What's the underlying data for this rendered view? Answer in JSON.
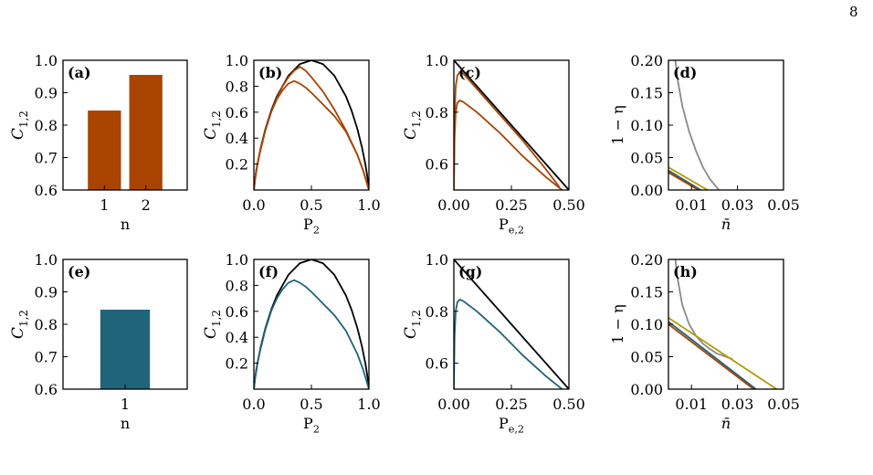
{
  "page": {
    "number": "8"
  },
  "colors": {
    "orange": "#A84300",
    "teal": "#1F6478",
    "olive": "#B49B00",
    "gray": "#8A8A8A",
    "black": "#000000"
  },
  "chart_data": [
    {
      "id": "a",
      "panel_label": "(a)",
      "type": "bar",
      "categories": [
        "1",
        "2"
      ],
      "values": [
        0.845,
        0.955
      ],
      "xlabel": "n",
      "ylabel": "C1,2",
      "ylim": [
        0.6,
        1.0
      ],
      "xticks": [
        "1",
        "2"
      ],
      "yticks": [
        "0.6",
        "0.7",
        "0.8",
        "0.9",
        "1.0"
      ],
      "color": "orange"
    },
    {
      "id": "b",
      "panel_label": "(b)",
      "type": "line",
      "xlabel": "P2",
      "ylabel": "C1,2",
      "xlim": [
        0,
        1
      ],
      "ylim": [
        0,
        1
      ],
      "xticks": [
        "0.0",
        "0.5",
        "1.0"
      ],
      "yticks": [
        "0.2",
        "0.4",
        "0.6",
        "0.8",
        "1.0"
      ],
      "series": [
        {
          "color": "black",
          "x": [
            0,
            0.01,
            0.03,
            0.06,
            0.1,
            0.15,
            0.2,
            0.3,
            0.4,
            0.5,
            0.6,
            0.7,
            0.8,
            0.85,
            0.9,
            0.94,
            0.97,
            0.99,
            1.0
          ],
          "y": [
            0,
            0.081,
            0.194,
            0.327,
            0.469,
            0.61,
            0.722,
            0.881,
            0.971,
            1.0,
            0.971,
            0.881,
            0.722,
            0.61,
            0.469,
            0.327,
            0.194,
            0.081,
            0
          ]
        },
        {
          "color": "orange",
          "x": [
            0,
            0.02,
            0.05,
            0.1,
            0.15,
            0.2,
            0.25,
            0.3,
            0.35,
            0.4,
            0.45,
            0.5,
            0.6,
            0.7,
            0.8,
            0.9,
            0.95,
            1.0
          ],
          "y": [
            0,
            0.15,
            0.28,
            0.46,
            0.6,
            0.71,
            0.8,
            0.87,
            0.92,
            0.95,
            0.92,
            0.87,
            0.76,
            0.62,
            0.46,
            0.27,
            0.15,
            0
          ]
        },
        {
          "color": "orange",
          "x": [
            0,
            0.02,
            0.05,
            0.1,
            0.15,
            0.2,
            0.25,
            0.3,
            0.35,
            0.4,
            0.45,
            0.5,
            0.6,
            0.7,
            0.8,
            0.9,
            0.95,
            1.0
          ],
          "y": [
            0,
            0.15,
            0.28,
            0.46,
            0.6,
            0.7,
            0.77,
            0.82,
            0.84,
            0.82,
            0.79,
            0.75,
            0.66,
            0.57,
            0.45,
            0.27,
            0.15,
            0
          ]
        }
      ]
    },
    {
      "id": "c",
      "panel_label": "(c)",
      "type": "line",
      "xlabel": "Pe,2",
      "ylabel": "C1,2",
      "xlim": [
        0,
        0.5
      ],
      "ylim": [
        0.5,
        1.0
      ],
      "xticks": [
        "0.00",
        "0.25",
        "0.50"
      ],
      "yticks": [
        "0.6",
        "0.8",
        "1.0"
      ],
      "series": [
        {
          "color": "black",
          "x": [
            0,
            0.5
          ],
          "y": [
            1.0,
            0.5
          ]
        },
        {
          "color": "orange",
          "x": [
            0,
            0.003,
            0.008,
            0.015,
            0.025,
            0.04,
            0.1,
            0.2,
            0.3,
            0.4,
            0.46
          ],
          "y": [
            0.5,
            0.78,
            0.9,
            0.94,
            0.955,
            0.95,
            0.89,
            0.79,
            0.69,
            0.58,
            0.51
          ]
        },
        {
          "color": "orange",
          "x": [
            0,
            0.003,
            0.008,
            0.015,
            0.025,
            0.04,
            0.1,
            0.2,
            0.3,
            0.4,
            0.47
          ],
          "y": [
            0.5,
            0.7,
            0.8,
            0.835,
            0.845,
            0.84,
            0.8,
            0.72,
            0.63,
            0.55,
            0.5
          ]
        }
      ]
    },
    {
      "id": "d",
      "panel_label": "(d)",
      "type": "line",
      "xlabel": "n̄",
      "ylabel": "1 − η",
      "xlim": [
        0,
        0.05
      ],
      "ylim": [
        0,
        0.2
      ],
      "xticks": [
        "0.01",
        "0.03",
        "0.05"
      ],
      "yticks": [
        "0.00",
        "0.05",
        "0.10",
        "0.15",
        "0.20"
      ],
      "series": [
        {
          "color": "gray",
          "x": [
            0.003,
            0.004,
            0.006,
            0.009,
            0.012,
            0.015,
            0.018,
            0.021,
            0.022
          ],
          "y": [
            0.2,
            0.17,
            0.13,
            0.09,
            0.06,
            0.035,
            0.017,
            0.004,
            0
          ]
        },
        {
          "color": "olive",
          "x": [
            0,
            0.017
          ],
          "y": [
            0.035,
            0
          ]
        },
        {
          "color": "teal",
          "x": [
            0,
            0.014
          ],
          "y": [
            0.03,
            0
          ]
        },
        {
          "color": "orange",
          "x": [
            0,
            0.013
          ],
          "y": [
            0.027,
            0
          ]
        }
      ]
    },
    {
      "id": "e",
      "panel_label": "(e)",
      "type": "bar",
      "categories": [
        "1"
      ],
      "values": [
        0.845
      ],
      "xlabel": "n",
      "ylabel": "C1,2",
      "ylim": [
        0.6,
        1.0
      ],
      "xticks": [
        "1"
      ],
      "yticks": [
        "0.6",
        "0.7",
        "0.8",
        "0.9",
        "1.0"
      ],
      "color": "teal"
    },
    {
      "id": "f",
      "panel_label": "(f)",
      "type": "line",
      "xlabel": "P2",
      "ylabel": "C1,2",
      "xlim": [
        0,
        1
      ],
      "ylim": [
        0,
        1
      ],
      "xticks": [
        "0.0",
        "0.5",
        "1.0"
      ],
      "yticks": [
        "0.2",
        "0.4",
        "0.6",
        "0.8",
        "1.0"
      ],
      "series": [
        {
          "color": "black",
          "x": [
            0,
            0.01,
            0.03,
            0.06,
            0.1,
            0.15,
            0.2,
            0.3,
            0.4,
            0.5,
            0.6,
            0.7,
            0.8,
            0.85,
            0.9,
            0.94,
            0.97,
            0.99,
            1.0
          ],
          "y": [
            0,
            0.081,
            0.194,
            0.327,
            0.469,
            0.61,
            0.722,
            0.881,
            0.971,
            1.0,
            0.971,
            0.881,
            0.722,
            0.61,
            0.469,
            0.327,
            0.194,
            0.081,
            0
          ]
        },
        {
          "color": "teal",
          "x": [
            0,
            0.02,
            0.05,
            0.1,
            0.15,
            0.2,
            0.25,
            0.3,
            0.35,
            0.4,
            0.45,
            0.5,
            0.6,
            0.7,
            0.8,
            0.9,
            0.95,
            1.0
          ],
          "y": [
            0,
            0.15,
            0.28,
            0.46,
            0.6,
            0.7,
            0.77,
            0.82,
            0.84,
            0.82,
            0.79,
            0.75,
            0.66,
            0.57,
            0.45,
            0.27,
            0.15,
            0
          ]
        }
      ]
    },
    {
      "id": "g",
      "panel_label": "(g)",
      "type": "line",
      "xlabel": "Pe,2",
      "ylabel": "C1,2",
      "xlim": [
        0,
        0.5
      ],
      "ylim": [
        0.5,
        1.0
      ],
      "xticks": [
        "0.00",
        "0.25",
        "0.50"
      ],
      "yticks": [
        "0.6",
        "0.8",
        "1.0"
      ],
      "series": [
        {
          "color": "black",
          "x": [
            0,
            0.5
          ],
          "y": [
            1.0,
            0.5
          ]
        },
        {
          "color": "teal",
          "x": [
            0,
            0.003,
            0.008,
            0.015,
            0.025,
            0.04,
            0.1,
            0.2,
            0.3,
            0.4,
            0.47
          ],
          "y": [
            0.5,
            0.7,
            0.8,
            0.835,
            0.845,
            0.84,
            0.8,
            0.72,
            0.63,
            0.55,
            0.5
          ]
        }
      ]
    },
    {
      "id": "h",
      "panel_label": "(h)",
      "type": "line",
      "xlabel": "n̄",
      "ylabel": "1 − η",
      "xlim": [
        0,
        0.05
      ],
      "ylim": [
        0,
        0.2
      ],
      "xticks": [
        "0.01",
        "0.03",
        "0.05"
      ],
      "yticks": [
        "0.00",
        "0.05",
        "0.10",
        "0.15",
        "0.20"
      ],
      "series": [
        {
          "color": "gray",
          "x": [
            0.003,
            0.004,
            0.006,
            0.009,
            0.012,
            0.015,
            0.018,
            0.021,
            0.025,
            0.028
          ],
          "y": [
            0.2,
            0.17,
            0.13,
            0.1,
            0.082,
            0.07,
            0.062,
            0.055,
            0.05,
            0.046
          ]
        },
        {
          "color": "olive",
          "x": [
            0,
            0.047
          ],
          "y": [
            0.11,
            0
          ]
        },
        {
          "color": "teal",
          "x": [
            0,
            0.038
          ],
          "y": [
            0.104,
            0
          ]
        },
        {
          "color": "orange",
          "x": [
            0,
            0.037
          ],
          "y": [
            0.1,
            0
          ]
        }
      ]
    }
  ]
}
